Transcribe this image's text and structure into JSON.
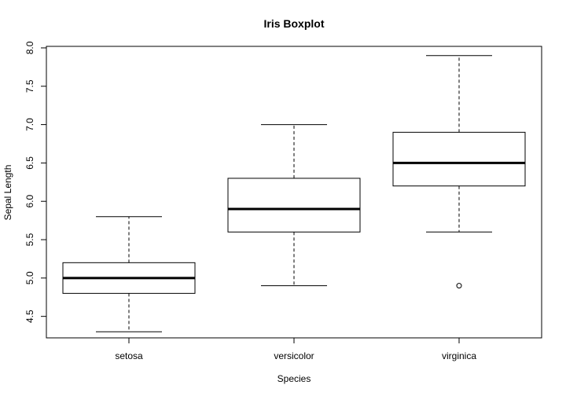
{
  "chart_data": {
    "type": "boxplot",
    "title": "Iris Boxplot",
    "xlabel": "Species",
    "ylabel": "Sepal Length",
    "ylim": [
      4.22,
      8.02
    ],
    "yticks": [
      "4.5",
      "5.0",
      "5.5",
      "6.0",
      "6.5",
      "7.0",
      "7.5",
      "8.0"
    ],
    "categories": [
      "setosa",
      "versicolor",
      "virginica"
    ],
    "boxes": [
      {
        "category": "setosa",
        "min": 4.3,
        "q1": 4.8,
        "median": 5.0,
        "q3": 5.2,
        "max": 5.8,
        "outliers": []
      },
      {
        "category": "versicolor",
        "min": 4.9,
        "q1": 5.6,
        "median": 5.9,
        "q3": 6.3,
        "max": 7.0,
        "outliers": []
      },
      {
        "category": "virginica",
        "min": 5.6,
        "q1": 6.2,
        "median": 6.5,
        "q3": 6.9,
        "max": 7.9,
        "outliers": [
          4.9
        ]
      }
    ],
    "grid": false,
    "legend": "none"
  }
}
